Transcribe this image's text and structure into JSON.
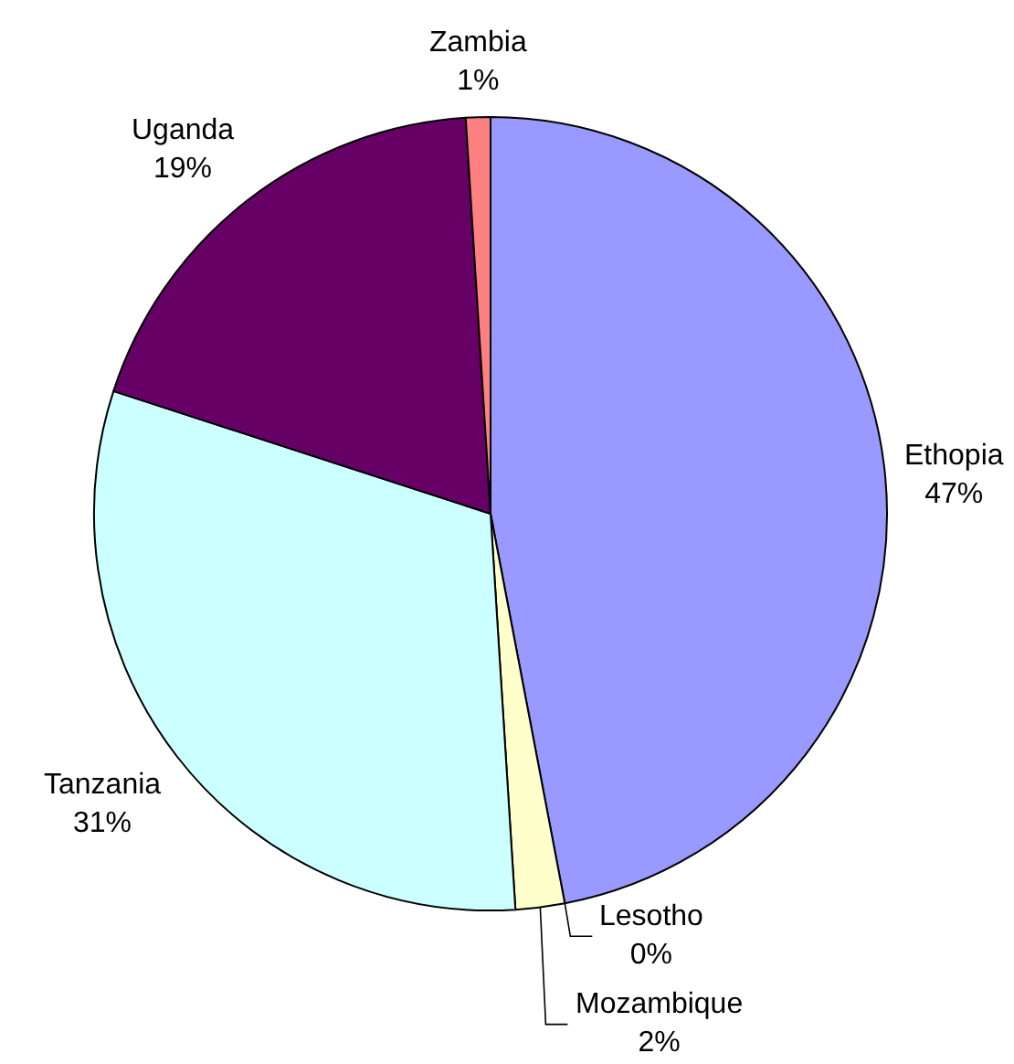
{
  "chart_data": {
    "type": "pie",
    "categories": [
      "Ethopia",
      "Lesotho",
      "Mozambique",
      "Tanzania",
      "Uganda",
      "Zambia"
    ],
    "values": [
      47,
      0,
      2,
      31,
      19,
      1
    ],
    "value_labels": [
      "47%",
      "0%",
      "2%",
      "31%",
      "19%",
      "1%"
    ],
    "colors": [
      "#9999ff",
      null,
      "#ffffcc",
      "#ccffff",
      "#660066",
      "#ff8080"
    ]
  }
}
